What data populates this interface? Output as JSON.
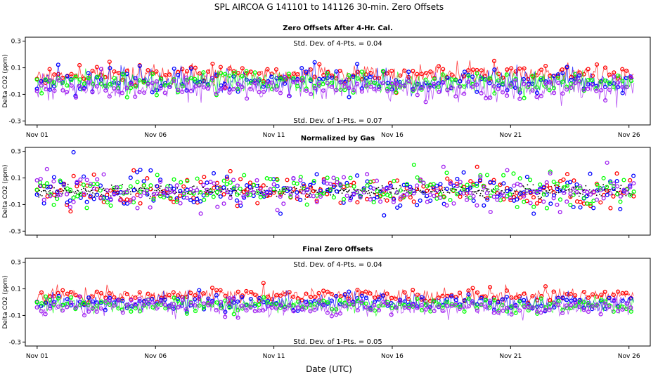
{
  "figure": {
    "title": "SPL   AIRCOA G   141101 to 141126   30-min. Zero Offsets",
    "xlabel": "Date (UTC)"
  },
  "colors": {
    "red": "#ff0000",
    "blue": "#0000ff",
    "green": "#00ff00",
    "purple": "#a020f0",
    "black": "#000000"
  },
  "chart_data": [
    {
      "type": "scatter",
      "title": "Zero Offsets After 4-Hr. Cal.",
      "ylabel": "Delta CO2 (ppm)",
      "ylim": [
        -0.33,
        0.33
      ],
      "yticks": [
        -0.3,
        -0.1,
        0.1,
        0.3
      ],
      "ytick_labels": [
        "-0.3",
        "-0.1",
        "0.1",
        "0.3"
      ],
      "xlim": [
        0.5,
        26.9
      ],
      "xticks": [
        1,
        6,
        11,
        16,
        21,
        26
      ],
      "xtick_labels": [
        "Nov 01",
        "Nov 06",
        "Nov 11",
        "Nov 16",
        "Nov 21",
        "Nov 26"
      ],
      "annotation_top": "Std. Dev. of 4-Pts. =  0.04",
      "annotation_bottom": "Std. Dev. of 1-Pts. =  0.07",
      "series": [
        {
          "name": "red",
          "mean": 0.05,
          "spread": 0.035,
          "x_start": 1.0,
          "x_end": 26.2,
          "points": 420,
          "seed": 11,
          "connected": true
        },
        {
          "name": "blue",
          "mean": 0.0,
          "spread": 0.045,
          "x_start": 1.0,
          "x_end": 26.2,
          "points": 420,
          "seed": 23,
          "connected": true
        },
        {
          "name": "green",
          "mean": -0.01,
          "spread": 0.04,
          "x_start": 1.0,
          "x_end": 26.2,
          "points": 420,
          "seed": 37,
          "connected": true
        },
        {
          "name": "purple",
          "mean": -0.05,
          "spread": 0.045,
          "x_start": 1.0,
          "x_end": 26.2,
          "points": 420,
          "seed": 49,
          "connected": true
        }
      ]
    },
    {
      "type": "scatter",
      "title": "Normalized by Gas",
      "ylabel": "Delta CO2 (ppm)",
      "ylim": [
        -0.33,
        0.33
      ],
      "yticks": [
        -0.3,
        -0.1,
        0.1,
        0.3
      ],
      "ytick_labels": [
        "-0.3",
        "-0.1",
        "0.1",
        "0.3"
      ],
      "xlim": [
        0.5,
        26.9
      ],
      "xticks": [
        1,
        6,
        11,
        16,
        21,
        26
      ],
      "xtick_labels": [
        "",
        "",
        "",
        "",
        "",
        ""
      ],
      "annotation_top": "",
      "annotation_bottom": "",
      "series": [
        {
          "name": "black",
          "mean": 0.0,
          "spread": 0.02,
          "x_start": 1.0,
          "x_end": 26.2,
          "points": 700,
          "seed": 61,
          "connected": false
        },
        {
          "name": "red",
          "mean": 0.0,
          "spread": 0.06,
          "x_start": 1.0,
          "x_end": 26.2,
          "points": 180,
          "seed": 73,
          "connected": false
        },
        {
          "name": "blue",
          "mean": 0.0,
          "spread": 0.065,
          "x_start": 1.0,
          "x_end": 26.2,
          "points": 180,
          "seed": 83,
          "connected": false
        },
        {
          "name": "green",
          "mean": 0.0,
          "spread": 0.06,
          "x_start": 1.0,
          "x_end": 26.2,
          "points": 180,
          "seed": 97,
          "connected": false
        },
        {
          "name": "purple",
          "mean": 0.0,
          "spread": 0.065,
          "x_start": 1.0,
          "x_end": 26.2,
          "points": 180,
          "seed": 101,
          "connected": false
        }
      ]
    },
    {
      "type": "scatter",
      "title": "Final Zero Offsets",
      "ylabel": "Delta CO2 (ppm)",
      "ylim": [
        -0.33,
        0.33
      ],
      "yticks": [
        -0.3,
        -0.1,
        0.1,
        0.3
      ],
      "ytick_labels": [
        "-0.3",
        "-0.1",
        "0.1",
        "0.3"
      ],
      "xlim": [
        0.5,
        26.9
      ],
      "xticks": [
        1,
        6,
        11,
        16,
        21,
        26
      ],
      "xtick_labels": [
        "Nov 01",
        "Nov 06",
        "Nov 11",
        "Nov 16",
        "Nov 21",
        "Nov 26"
      ],
      "annotation_top": "Std. Dev. of 4-Pts. =  0.04",
      "annotation_bottom": "Std. Dev. of 1-Pts. =  0.05",
      "series": [
        {
          "name": "red",
          "mean": 0.05,
          "spread": 0.025,
          "x_start": 1.0,
          "x_end": 26.2,
          "points": 420,
          "seed": 131,
          "connected": true
        },
        {
          "name": "blue",
          "mean": 0.0,
          "spread": 0.03,
          "x_start": 1.0,
          "x_end": 26.2,
          "points": 420,
          "seed": 151,
          "connected": true
        },
        {
          "name": "green",
          "mean": -0.02,
          "spread": 0.028,
          "x_start": 1.0,
          "x_end": 26.2,
          "points": 420,
          "seed": 167,
          "connected": true
        },
        {
          "name": "purple",
          "mean": -0.04,
          "spread": 0.03,
          "x_start": 1.0,
          "x_end": 26.2,
          "points": 420,
          "seed": 181,
          "connected": true
        }
      ]
    }
  ]
}
